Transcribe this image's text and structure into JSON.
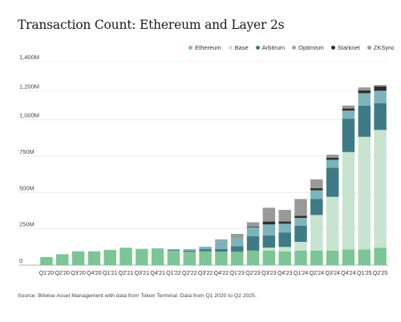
{
  "chart_data": {
    "type": "bar",
    "stacked": true,
    "title": "Transaction Count: Ethereum and Layer 2s",
    "xlabel": "",
    "ylabel": "",
    "ylim": [
      0,
      1400
    ],
    "yticks": [
      0,
      250,
      500,
      750,
      1000,
      1200,
      1400
    ],
    "ytick_labels": [
      "0",
      "250M",
      "500M",
      "750M",
      "1,000M",
      "1,200M",
      "1,400M"
    ],
    "grid": true,
    "legend_position": "top-right",
    "categories": [
      "Q1'20",
      "Q2'20",
      "Q3'20",
      "Q4'20",
      "Q1'21",
      "Q2'21",
      "Q3'21",
      "Q4'21",
      "Q1'22",
      "Q2'22",
      "Q3'22",
      "Q4'22",
      "Q1'23",
      "Q2'23",
      "Q3'23",
      "Q4'23",
      "Q1'24",
      "Q2'24",
      "Q3'24",
      "Q4'24",
      "Q1'25",
      "Q2'25"
    ],
    "xtick_labels": [
      "Q1'20",
      "Q2'20",
      "Q3'20",
      "Q4'20",
      "Q1'21",
      "Q2'21",
      "Q3'21",
      "Q4'21",
      "Q1'22",
      "Q2'22",
      "Q3'22",
      "Q4'22",
      "Q1'23",
      "Q2'23",
      "Q3'23",
      "Q4'23",
      "Q1'24",
      "Q2'24",
      "Q3'24",
      "Q4'24",
      "Q1'25",
      "Q2'25"
    ],
    "series": [
      {
        "name": "Ethereum",
        "color": "#7dc497",
        "values": [
          55,
          75,
          95,
          95,
          105,
          118,
          110,
          110,
          100,
          92,
          95,
          92,
          92,
          100,
          100,
          95,
          100,
          100,
          100,
          108,
          108,
          120
        ]
      },
      {
        "name": "Base",
        "color": "#c6e4cf",
        "values": [
          0,
          0,
          0,
          0,
          0,
          0,
          0,
          0,
          0,
          0,
          0,
          0,
          0,
          0,
          20,
          30,
          60,
          245,
          370,
          670,
          775,
          810
        ]
      },
      {
        "name": "Arbitrum",
        "color": "#3f7a87",
        "values": [
          0,
          0,
          0,
          0,
          0,
          0,
          0,
          2,
          5,
          8,
          15,
          20,
          38,
          100,
          85,
          100,
          110,
          110,
          200,
          230,
          215,
          185
        ]
      },
      {
        "name": "Optimism",
        "color": "#7fb3bb",
        "values": [
          0,
          0,
          0,
          0,
          0,
          2,
          2,
          3,
          5,
          10,
          15,
          55,
          55,
          60,
          75,
          60,
          55,
          60,
          55,
          55,
          85,
          85
        ]
      },
      {
        "name": "Starknet",
        "color": "#2f2f2f",
        "values": [
          0,
          0,
          0,
          0,
          0,
          0,
          0,
          0,
          0,
          0,
          0,
          0,
          0,
          5,
          20,
          15,
          15,
          15,
          15,
          15,
          20,
          30
        ]
      },
      {
        "name": "ZKSync",
        "color": "#999999",
        "values": [
          0,
          0,
          0,
          0,
          0,
          0,
          0,
          0,
          0,
          0,
          2,
          10,
          30,
          30,
          95,
          80,
          115,
          60,
          20,
          20,
          20,
          10
        ]
      }
    ]
  },
  "source": "Source: Bitwise Asset Management with data from Token Terminal. Data from Q1 2020 to Q2 2025."
}
